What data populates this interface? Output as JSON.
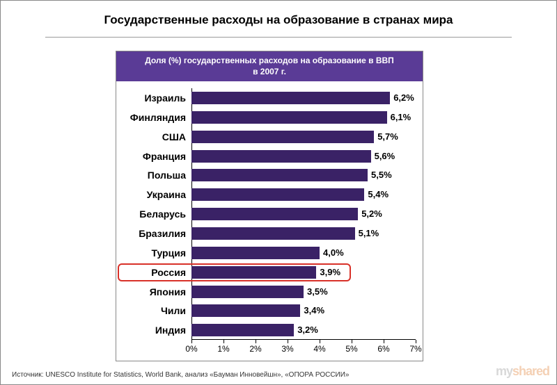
{
  "title": "Государственные расходы на образование в странах мира",
  "chart": {
    "type": "bar-horizontal",
    "header_line1": "Доля (%) государственных расходов на образование в ВВП",
    "header_line2": "в 2007 г.",
    "header_bg": "#5a3b96",
    "header_text_color": "#ffffff",
    "bar_color": "#3a2266",
    "highlight_border_color": "#d83028",
    "border_color": "#888888",
    "x_min": 0,
    "x_max": 7,
    "x_tick_step": 1,
    "x_ticks": [
      "0%",
      "1%",
      "2%",
      "3%",
      "4%",
      "5%",
      "6%",
      "7%"
    ],
    "categories": [
      {
        "label": "Израиль",
        "value": 6.2,
        "display": "6,2%"
      },
      {
        "label": "Финляндия",
        "value": 6.1,
        "display": "6,1%"
      },
      {
        "label": "США",
        "value": 5.7,
        "display": "5,7%"
      },
      {
        "label": "Франция",
        "value": 5.6,
        "display": "5,6%"
      },
      {
        "label": "Польша",
        "value": 5.5,
        "display": "5,5%"
      },
      {
        "label": "Украина",
        "value": 5.4,
        "display": "5,4%"
      },
      {
        "label": "Беларусь",
        "value": 5.2,
        "display": "5,2%"
      },
      {
        "label": "Бразилия",
        "value": 5.1,
        "display": "5,1%"
      },
      {
        "label": "Турция",
        "value": 4.0,
        "display": "4,0%"
      },
      {
        "label": "Россия",
        "value": 3.9,
        "display": "3,9%",
        "highlight": true
      },
      {
        "label": "Япония",
        "value": 3.5,
        "display": "3,5%"
      },
      {
        "label": "Чили",
        "value": 3.4,
        "display": "3,4%"
      },
      {
        "label": "Индия",
        "value": 3.2,
        "display": "3,2%"
      }
    ],
    "label_fontsize": 14,
    "value_fontsize": 13,
    "tick_fontsize": 12,
    "header_fontsize": 12
  },
  "source": "Источник: UNESCO Institute for Statistics, World Bank, анализ «Бауман Инновейшн», «ОПОРА РОССИИ»",
  "watermark": {
    "a": "my",
    "b": "shared"
  }
}
